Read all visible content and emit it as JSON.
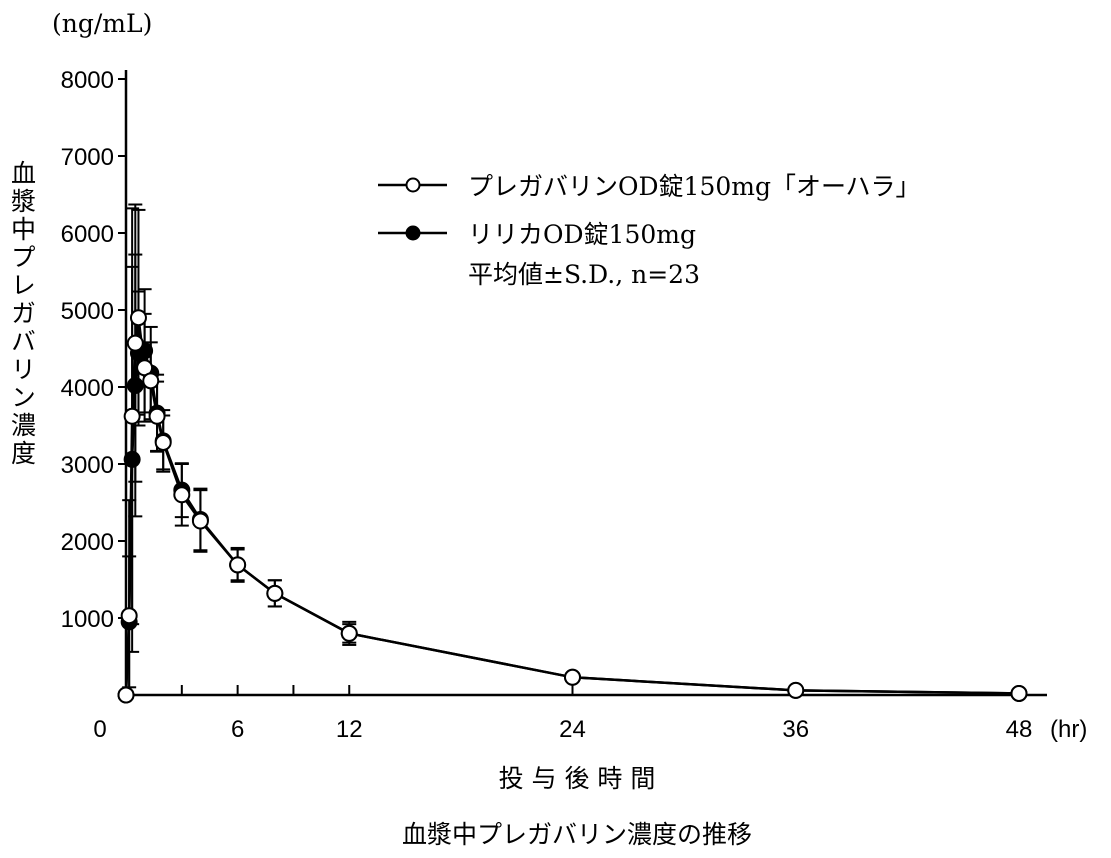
{
  "chart_data": {
    "type": "line",
    "title": "血漿中プレガバリン濃度の推移",
    "xlabel": "投 与 後 時 間",
    "xunit": "(hr)",
    "ylabel": "血漿中プレガバリン濃度",
    "yunit": "(ng/mL)",
    "xlim": [
      0,
      48
    ],
    "ylim": [
      0,
      8000
    ],
    "xticks": [
      0,
      6,
      12,
      24,
      36,
      48
    ],
    "xminor": [
      3,
      9
    ],
    "yticks": [
      1000,
      2000,
      3000,
      4000,
      5000,
      6000,
      7000,
      8000
    ],
    "x": [
      0,
      0.17,
      0.33,
      0.5,
      0.67,
      1,
      1.33,
      1.67,
      2,
      3,
      4,
      6,
      8,
      12,
      24,
      36,
      48
    ],
    "series": [
      {
        "name": "プレガバリンOD錠150mg「オーハラ」",
        "marker": "open-circle",
        "values": [
          0,
          1030,
          3620,
          4570,
          4900,
          4250,
          4080,
          3620,
          3280,
          2600,
          2260,
          1690,
          1320,
          800,
          230,
          60,
          20
        ],
        "sd": [
          0,
          1500,
          2700,
          1800,
          1400,
          700,
          500,
          450,
          350,
          400,
          400,
          220,
          170,
          120,
          40,
          15,
          5
        ]
      },
      {
        "name": "リリカOD錠150mg",
        "marker": "filled-circle",
        "values": [
          0,
          950,
          3060,
          4020,
          4440,
          4470,
          4180,
          3660,
          3300,
          2660,
          2280,
          1690,
          1320,
          800,
          230,
          60,
          20
        ],
        "sd": [
          0,
          850,
          2500,
          1700,
          800,
          800,
          600,
          500,
          400,
          350,
          400,
          200,
          170,
          150,
          50,
          15,
          5
        ]
      }
    ],
    "legend_note": "平均値±S.D., n=23",
    "legend_position": "top-right",
    "grid": false
  }
}
